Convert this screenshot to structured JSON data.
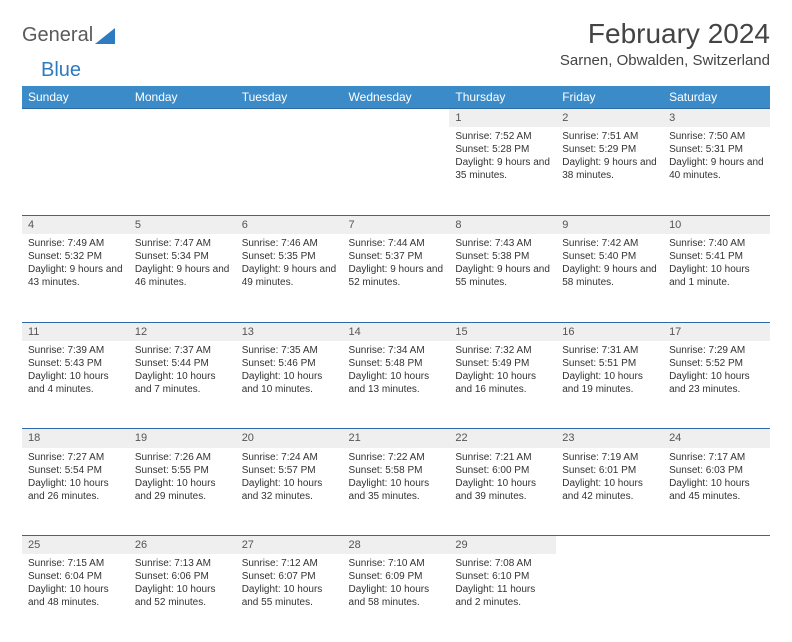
{
  "logo": {
    "text1": "General",
    "text2": "Blue"
  },
  "title": "February 2024",
  "location": "Sarnen, Obwalden, Switzerland",
  "colors": {
    "header_bg": "#3b8bc9",
    "header_text": "#ffffff",
    "daynum_bg": "#efefef",
    "border": "#2d6aa3",
    "logo_gray": "#5a5a5a",
    "logo_blue": "#2d7bc0"
  },
  "day_headers": [
    "Sunday",
    "Monday",
    "Tuesday",
    "Wednesday",
    "Thursday",
    "Friday",
    "Saturday"
  ],
  "weeks": [
    [
      null,
      null,
      null,
      null,
      {
        "n": "1",
        "sr": "Sunrise: 7:52 AM",
        "ss": "Sunset: 5:28 PM",
        "dl": "Daylight: 9 hours and 35 minutes."
      },
      {
        "n": "2",
        "sr": "Sunrise: 7:51 AM",
        "ss": "Sunset: 5:29 PM",
        "dl": "Daylight: 9 hours and 38 minutes."
      },
      {
        "n": "3",
        "sr": "Sunrise: 7:50 AM",
        "ss": "Sunset: 5:31 PM",
        "dl": "Daylight: 9 hours and 40 minutes."
      }
    ],
    [
      {
        "n": "4",
        "sr": "Sunrise: 7:49 AM",
        "ss": "Sunset: 5:32 PM",
        "dl": "Daylight: 9 hours and 43 minutes."
      },
      {
        "n": "5",
        "sr": "Sunrise: 7:47 AM",
        "ss": "Sunset: 5:34 PM",
        "dl": "Daylight: 9 hours and 46 minutes."
      },
      {
        "n": "6",
        "sr": "Sunrise: 7:46 AM",
        "ss": "Sunset: 5:35 PM",
        "dl": "Daylight: 9 hours and 49 minutes."
      },
      {
        "n": "7",
        "sr": "Sunrise: 7:44 AM",
        "ss": "Sunset: 5:37 PM",
        "dl": "Daylight: 9 hours and 52 minutes."
      },
      {
        "n": "8",
        "sr": "Sunrise: 7:43 AM",
        "ss": "Sunset: 5:38 PM",
        "dl": "Daylight: 9 hours and 55 minutes."
      },
      {
        "n": "9",
        "sr": "Sunrise: 7:42 AM",
        "ss": "Sunset: 5:40 PM",
        "dl": "Daylight: 9 hours and 58 minutes."
      },
      {
        "n": "10",
        "sr": "Sunrise: 7:40 AM",
        "ss": "Sunset: 5:41 PM",
        "dl": "Daylight: 10 hours and 1 minute."
      }
    ],
    [
      {
        "n": "11",
        "sr": "Sunrise: 7:39 AM",
        "ss": "Sunset: 5:43 PM",
        "dl": "Daylight: 10 hours and 4 minutes."
      },
      {
        "n": "12",
        "sr": "Sunrise: 7:37 AM",
        "ss": "Sunset: 5:44 PM",
        "dl": "Daylight: 10 hours and 7 minutes."
      },
      {
        "n": "13",
        "sr": "Sunrise: 7:35 AM",
        "ss": "Sunset: 5:46 PM",
        "dl": "Daylight: 10 hours and 10 minutes."
      },
      {
        "n": "14",
        "sr": "Sunrise: 7:34 AM",
        "ss": "Sunset: 5:48 PM",
        "dl": "Daylight: 10 hours and 13 minutes."
      },
      {
        "n": "15",
        "sr": "Sunrise: 7:32 AM",
        "ss": "Sunset: 5:49 PM",
        "dl": "Daylight: 10 hours and 16 minutes."
      },
      {
        "n": "16",
        "sr": "Sunrise: 7:31 AM",
        "ss": "Sunset: 5:51 PM",
        "dl": "Daylight: 10 hours and 19 minutes."
      },
      {
        "n": "17",
        "sr": "Sunrise: 7:29 AM",
        "ss": "Sunset: 5:52 PM",
        "dl": "Daylight: 10 hours and 23 minutes."
      }
    ],
    [
      {
        "n": "18",
        "sr": "Sunrise: 7:27 AM",
        "ss": "Sunset: 5:54 PM",
        "dl": "Daylight: 10 hours and 26 minutes."
      },
      {
        "n": "19",
        "sr": "Sunrise: 7:26 AM",
        "ss": "Sunset: 5:55 PM",
        "dl": "Daylight: 10 hours and 29 minutes."
      },
      {
        "n": "20",
        "sr": "Sunrise: 7:24 AM",
        "ss": "Sunset: 5:57 PM",
        "dl": "Daylight: 10 hours and 32 minutes."
      },
      {
        "n": "21",
        "sr": "Sunrise: 7:22 AM",
        "ss": "Sunset: 5:58 PM",
        "dl": "Daylight: 10 hours and 35 minutes."
      },
      {
        "n": "22",
        "sr": "Sunrise: 7:21 AM",
        "ss": "Sunset: 6:00 PM",
        "dl": "Daylight: 10 hours and 39 minutes."
      },
      {
        "n": "23",
        "sr": "Sunrise: 7:19 AM",
        "ss": "Sunset: 6:01 PM",
        "dl": "Daylight: 10 hours and 42 minutes."
      },
      {
        "n": "24",
        "sr": "Sunrise: 7:17 AM",
        "ss": "Sunset: 6:03 PM",
        "dl": "Daylight: 10 hours and 45 minutes."
      }
    ],
    [
      {
        "n": "25",
        "sr": "Sunrise: 7:15 AM",
        "ss": "Sunset: 6:04 PM",
        "dl": "Daylight: 10 hours and 48 minutes."
      },
      {
        "n": "26",
        "sr": "Sunrise: 7:13 AM",
        "ss": "Sunset: 6:06 PM",
        "dl": "Daylight: 10 hours and 52 minutes."
      },
      {
        "n": "27",
        "sr": "Sunrise: 7:12 AM",
        "ss": "Sunset: 6:07 PM",
        "dl": "Daylight: 10 hours and 55 minutes."
      },
      {
        "n": "28",
        "sr": "Sunrise: 7:10 AM",
        "ss": "Sunset: 6:09 PM",
        "dl": "Daylight: 10 hours and 58 minutes."
      },
      {
        "n": "29",
        "sr": "Sunrise: 7:08 AM",
        "ss": "Sunset: 6:10 PM",
        "dl": "Daylight: 11 hours and 2 minutes."
      },
      null,
      null
    ]
  ]
}
